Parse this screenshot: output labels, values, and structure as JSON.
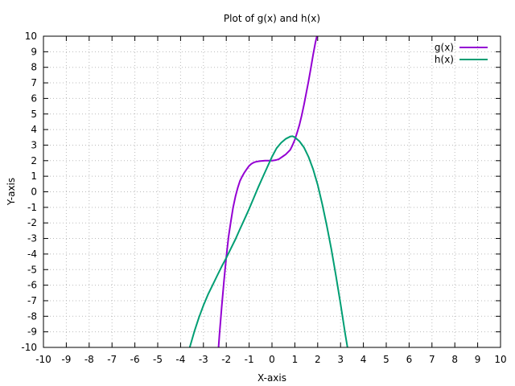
{
  "chart_data": {
    "type": "line",
    "title": "Plot of g(x) and h(x)",
    "xlabel": "X-axis",
    "ylabel": "Y-axis",
    "xlim": [
      -10,
      10
    ],
    "ylim": [
      -10,
      10
    ],
    "xticks": [
      -10,
      -9,
      -8,
      -7,
      -6,
      -5,
      -4,
      -3,
      -2,
      -1,
      0,
      1,
      2,
      3,
      4,
      5,
      6,
      7,
      8,
      9,
      10
    ],
    "yticks": [
      -10,
      -9,
      -8,
      -7,
      -6,
      -5,
      -4,
      -3,
      -2,
      -1,
      0,
      1,
      2,
      3,
      4,
      5,
      6,
      7,
      8,
      9,
      10
    ],
    "grid": true,
    "legend_position": "top-right",
    "series": [
      {
        "name": "g(x)",
        "color": "#9400d3",
        "x": [
          -2.35,
          -2.3,
          -2.2,
          -2.1,
          -2.0,
          -1.9,
          -1.8,
          -1.7,
          -1.6,
          -1.5,
          -1.4,
          -1.3,
          -1.2,
          -1.1,
          -1.0,
          -0.9,
          -0.8,
          -0.7,
          -0.6,
          -0.5,
          -0.4,
          -0.3,
          -0.2,
          -0.1,
          0.0,
          0.1,
          0.2,
          0.3,
          0.4,
          0.5,
          0.6,
          0.7,
          0.8,
          0.9,
          1.0,
          1.1,
          1.2,
          1.3,
          1.4,
          1.5,
          1.6,
          1.7,
          1.8,
          1.9,
          2.0
        ],
        "y": [
          -10.2,
          -9.2,
          -7.4,
          -5.7,
          -4.2,
          -2.9,
          -1.9,
          -1.0,
          -0.3,
          0.25,
          0.7,
          1.0,
          1.25,
          1.47,
          1.67,
          1.8,
          1.88,
          1.93,
          1.96,
          1.98,
          1.99,
          2.0,
          2.0,
          2.0,
          2.0,
          2.02,
          2.05,
          2.1,
          2.2,
          2.3,
          2.4,
          2.55,
          2.7,
          3.0,
          3.35,
          3.8,
          4.3,
          4.9,
          5.6,
          6.35,
          7.1,
          7.95,
          8.8,
          9.6,
          10.2
        ]
      },
      {
        "name": "h(x)",
        "color": "#009e73",
        "x": [
          -3.6,
          -3.4,
          -3.2,
          -3.0,
          -2.8,
          -2.6,
          -2.4,
          -2.2,
          -2.0,
          -1.8,
          -1.6,
          -1.4,
          -1.2,
          -1.0,
          -0.8,
          -0.6,
          -0.4,
          -0.2,
          0.0,
          0.2,
          0.4,
          0.6,
          0.8,
          0.9,
          1.0,
          1.2,
          1.4,
          1.6,
          1.8,
          2.0,
          2.2,
          2.4,
          2.6,
          2.8,
          3.0,
          3.2,
          3.35
        ],
        "y": [
          -10.0,
          -9.0,
          -8.1,
          -7.3,
          -6.6,
          -6.0,
          -5.4,
          -4.8,
          -4.25,
          -3.65,
          -3.05,
          -2.4,
          -1.75,
          -1.1,
          -0.4,
          0.3,
          0.95,
          1.6,
          2.25,
          2.8,
          3.15,
          3.4,
          3.55,
          3.57,
          3.5,
          3.25,
          2.85,
          2.25,
          1.45,
          0.45,
          -0.8,
          -2.2,
          -3.7,
          -5.4,
          -7.2,
          -9.1,
          -10.4
        ]
      }
    ]
  }
}
